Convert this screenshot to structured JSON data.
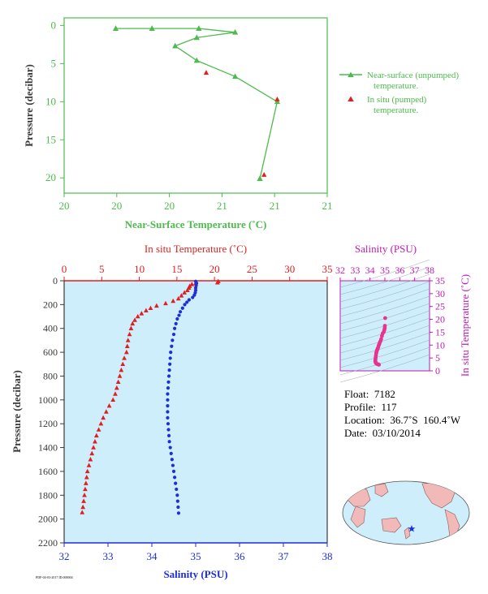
{
  "chart_data": [
    {
      "type": "line",
      "xlabel": "Near-Surface Temperature (˚C)",
      "ylabel": "Pressure (decibar)",
      "x_ticks": [
        "20",
        "20",
        "20",
        "21",
        "21",
        "21"
      ],
      "y_ticks": [
        "0",
        "5",
        "10",
        "15",
        "20"
      ],
      "ylim": [
        22,
        -1
      ],
      "series": [
        {
          "name": "Near-surface (unpumped) temperature.",
          "marker": "triangle",
          "color": "#4dbb4d",
          "points": [
            [
              0.98,
              0.4
            ],
            [
              1.67,
              0.4
            ],
            [
              2.56,
              0.4
            ],
            [
              3.25,
              0.9
            ],
            [
              2.52,
              1.6
            ],
            [
              2.11,
              2.7
            ],
            [
              2.52,
              4.6
            ],
            [
              3.25,
              6.7
            ],
            [
              4.05,
              10.0
            ],
            [
              3.72,
              20.1
            ]
          ]
        },
        {
          "name": "In situ (pumped) temperature.",
          "marker": "triangle",
          "color": "#e02020",
          "points": [
            [
              2.7,
              6.2
            ],
            [
              4.05,
              9.7
            ],
            [
              3.8,
              19.6
            ]
          ]
        }
      ]
    },
    {
      "type": "scatter",
      "top_xlabel": "In situ Temperature (˚C)",
      "bottom_xlabel": "Salinity (PSU)",
      "ylabel": "Pressure (decibar)",
      "temp_ticks": [
        "0",
        "5",
        "10",
        "15",
        "20",
        "25",
        "30",
        "35"
      ],
      "temp_range": [
        0,
        35
      ],
      "sal_ticks": [
        "32",
        "33",
        "34",
        "35",
        "36",
        "37",
        "38"
      ],
      "sal_range": [
        32,
        38
      ],
      "y_ticks": [
        "0",
        "200",
        "400",
        "600",
        "800",
        "1000",
        "1200",
        "1400",
        "1600",
        "1800",
        "2000",
        "2200"
      ],
      "ylim": [
        2200,
        0
      ],
      "temperature": {
        "color": "#e02020",
        "points": [
          [
            20.5,
            5
          ],
          [
            20.4,
            15
          ],
          [
            17.5,
            20
          ],
          [
            17.0,
            30
          ],
          [
            16.7,
            45
          ],
          [
            16.6,
            60
          ],
          [
            16.4,
            80
          ],
          [
            16.0,
            100
          ],
          [
            15.6,
            125
          ],
          [
            15.2,
            150
          ],
          [
            14.5,
            170
          ],
          [
            13.5,
            190
          ],
          [
            12.3,
            210
          ],
          [
            11.5,
            230
          ],
          [
            10.9,
            250
          ],
          [
            10.3,
            275
          ],
          [
            9.8,
            300
          ],
          [
            9.4,
            330
          ],
          [
            9.1,
            360
          ],
          [
            8.9,
            400
          ],
          [
            8.7,
            450
          ],
          [
            8.5,
            500
          ],
          [
            8.4,
            550
          ],
          [
            8.3,
            600
          ],
          [
            8.0,
            650
          ],
          [
            7.8,
            700
          ],
          [
            7.6,
            750
          ],
          [
            7.4,
            800
          ],
          [
            7.2,
            850
          ],
          [
            7.0,
            900
          ],
          [
            6.8,
            950
          ],
          [
            6.5,
            1000
          ],
          [
            6.0,
            1050
          ],
          [
            5.6,
            1100
          ],
          [
            5.2,
            1150
          ],
          [
            4.9,
            1200
          ],
          [
            4.6,
            1250
          ],
          [
            4.3,
            1300
          ],
          [
            4.1,
            1350
          ],
          [
            3.9,
            1400
          ],
          [
            3.7,
            1450
          ],
          [
            3.5,
            1500
          ],
          [
            3.3,
            1550
          ],
          [
            3.1,
            1600
          ],
          [
            3.0,
            1650
          ],
          [
            2.9,
            1700
          ],
          [
            2.8,
            1750
          ],
          [
            2.7,
            1800
          ],
          [
            2.6,
            1850
          ],
          [
            2.5,
            1900
          ],
          [
            2.4,
            1945
          ]
        ]
      },
      "salinity": {
        "color": "#1f2fd6",
        "points": [
          [
            35.0,
            5
          ],
          [
            35.02,
            20
          ],
          [
            35.01,
            40
          ],
          [
            35.0,
            60
          ],
          [
            35.0,
            80
          ],
          [
            34.99,
            100
          ],
          [
            34.97,
            120
          ],
          [
            34.93,
            140
          ],
          [
            34.85,
            160
          ],
          [
            34.8,
            180
          ],
          [
            34.75,
            200
          ],
          [
            34.7,
            230
          ],
          [
            34.65,
            260
          ],
          [
            34.62,
            290
          ],
          [
            34.58,
            320
          ],
          [
            34.55,
            360
          ],
          [
            34.52,
            400
          ],
          [
            34.5,
            450
          ],
          [
            34.47,
            500
          ],
          [
            34.45,
            550
          ],
          [
            34.43,
            600
          ],
          [
            34.42,
            650
          ],
          [
            34.41,
            700
          ],
          [
            34.4,
            750
          ],
          [
            34.39,
            800
          ],
          [
            34.38,
            850
          ],
          [
            34.37,
            900
          ],
          [
            34.36,
            950
          ],
          [
            34.36,
            1000
          ],
          [
            34.36,
            1050
          ],
          [
            34.36,
            1100
          ],
          [
            34.36,
            1150
          ],
          [
            34.37,
            1200
          ],
          [
            34.38,
            1250
          ],
          [
            34.39,
            1300
          ],
          [
            34.4,
            1350
          ],
          [
            34.42,
            1400
          ],
          [
            34.44,
            1450
          ],
          [
            34.46,
            1500
          ],
          [
            34.48,
            1550
          ],
          [
            34.5,
            1600
          ],
          [
            34.52,
            1650
          ],
          [
            34.54,
            1700
          ],
          [
            34.56,
            1750
          ],
          [
            34.58,
            1800
          ],
          [
            34.59,
            1850
          ],
          [
            34.6,
            1900
          ],
          [
            34.61,
            1950
          ]
        ]
      }
    },
    {
      "type": "scatter",
      "xlabel": "Salinity (PSU)",
      "ylabel": "In situ Temperature (˚C)",
      "x_ticks": [
        "32",
        "33",
        "34",
        "35",
        "36",
        "37",
        "38"
      ],
      "xlim": [
        32,
        38
      ],
      "y_ticks": [
        "0",
        "5",
        "10",
        "15",
        "20",
        "25",
        "30",
        "35"
      ],
      "ylim": [
        0,
        35
      ],
      "color": "#e8338f",
      "points": [
        [
          35.02,
          20.5
        ],
        [
          35.0,
          17.5
        ],
        [
          34.99,
          16.6
        ],
        [
          34.97,
          16.0
        ],
        [
          34.93,
          15.2
        ],
        [
          34.85,
          14.5
        ],
        [
          34.8,
          13.5
        ],
        [
          34.75,
          12.3
        ],
        [
          34.7,
          11.5
        ],
        [
          34.65,
          10.9
        ],
        [
          34.62,
          10.3
        ],
        [
          34.58,
          9.8
        ],
        [
          34.55,
          9.1
        ],
        [
          34.52,
          8.7
        ],
        [
          34.5,
          8.4
        ],
        [
          34.47,
          8.0
        ],
        [
          34.45,
          7.6
        ],
        [
          34.43,
          7.2
        ],
        [
          34.42,
          6.8
        ],
        [
          34.4,
          6.0
        ],
        [
          34.38,
          5.2
        ],
        [
          34.37,
          4.6
        ],
        [
          34.36,
          4.1
        ],
        [
          34.36,
          3.7
        ],
        [
          34.38,
          3.3
        ],
        [
          34.4,
          3.0
        ],
        [
          34.44,
          2.8
        ],
        [
          34.5,
          2.6
        ],
        [
          34.56,
          2.5
        ],
        [
          34.6,
          2.4
        ]
      ]
    }
  ],
  "legend": {
    "near_surface_line1": "Near-surface (unpumped)",
    "near_surface_line2": "temperature.",
    "in_situ_line1": "In situ (pumped)",
    "in_situ_line2": "temperature."
  },
  "float_info": {
    "float": "Float:  7182",
    "profile": "Profile:  117",
    "location": "Location:  36.7˚S  160.4˚W",
    "date": "Date:  03/10/2014"
  },
  "footer_code": "PDF-04-03-2017  ID:000004",
  "colors": {
    "green": "#4dbb4d",
    "red": "#e02020",
    "blue": "#1f2fd6",
    "magenta": "#c01bb4",
    "panel_bg": "#cdeefa",
    "axis_dark": "#3a3a3a"
  }
}
